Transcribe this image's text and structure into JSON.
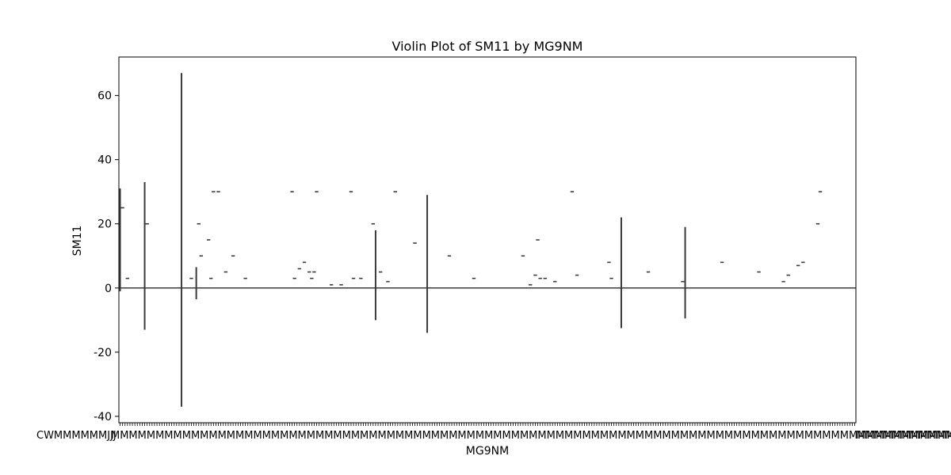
{
  "chart_data": {
    "type": "violin",
    "title": "Violin Plot of SM11 by MG9NM",
    "xlabel": "MG9NM",
    "ylabel": "SM11",
    "ylim": [
      -42,
      72
    ],
    "yticks": [
      -40,
      -20,
      0,
      20,
      40,
      60
    ],
    "category_count": 300,
    "x_tick_labels": "category labels overlap and are illegible",
    "grid": false,
    "legend": "none",
    "colors": {
      "line": "#3a3a3a",
      "axis": "#000000"
    },
    "violins": [
      {
        "pos": 0,
        "min": -1,
        "max": 31
      },
      {
        "pos": 10,
        "min": -13,
        "max": 33
      },
      {
        "pos": 25,
        "min": -37,
        "max": 67
      },
      {
        "pos": 31,
        "min": -3.5,
        "max": 6.5
      },
      {
        "pos": 104,
        "min": -10,
        "max": 18
      },
      {
        "pos": 125,
        "min": -14,
        "max": 29
      },
      {
        "pos": 204,
        "min": -12.5,
        "max": 22
      },
      {
        "pos": 230,
        "min": -9.5,
        "max": 19
      }
    ],
    "marks": [
      {
        "pos": 1,
        "value": 25
      },
      {
        "pos": 3,
        "value": 3
      },
      {
        "pos": 11,
        "value": 20
      },
      {
        "pos": 29,
        "value": 3
      },
      {
        "pos": 32,
        "value": 20
      },
      {
        "pos": 33,
        "value": 10
      },
      {
        "pos": 36,
        "value": 15
      },
      {
        "pos": 37,
        "value": 3
      },
      {
        "pos": 38,
        "value": 30
      },
      {
        "pos": 40,
        "value": 30
      },
      {
        "pos": 43,
        "value": 5
      },
      {
        "pos": 46,
        "value": 10
      },
      {
        "pos": 51,
        "value": 3
      },
      {
        "pos": 70,
        "value": 30
      },
      {
        "pos": 71,
        "value": 3
      },
      {
        "pos": 73,
        "value": 6
      },
      {
        "pos": 75,
        "value": 8
      },
      {
        "pos": 77,
        "value": 5
      },
      {
        "pos": 78,
        "value": 3
      },
      {
        "pos": 79,
        "value": 5
      },
      {
        "pos": 80,
        "value": 30
      },
      {
        "pos": 86,
        "value": 1
      },
      {
        "pos": 90,
        "value": 1
      },
      {
        "pos": 94,
        "value": 30
      },
      {
        "pos": 95,
        "value": 3
      },
      {
        "pos": 98,
        "value": 3
      },
      {
        "pos": 103,
        "value": 20
      },
      {
        "pos": 106,
        "value": 5
      },
      {
        "pos": 109,
        "value": 2
      },
      {
        "pos": 112,
        "value": 30
      },
      {
        "pos": 120,
        "value": 14
      },
      {
        "pos": 134,
        "value": 10
      },
      {
        "pos": 144,
        "value": 3
      },
      {
        "pos": 164,
        "value": 10
      },
      {
        "pos": 167,
        "value": 1
      },
      {
        "pos": 169,
        "value": 4
      },
      {
        "pos": 170,
        "value": 15
      },
      {
        "pos": 171,
        "value": 3
      },
      {
        "pos": 173,
        "value": 3
      },
      {
        "pos": 177,
        "value": 2
      },
      {
        "pos": 184,
        "value": 30
      },
      {
        "pos": 186,
        "value": 4
      },
      {
        "pos": 199,
        "value": 8
      },
      {
        "pos": 200,
        "value": 3
      },
      {
        "pos": 215,
        "value": 5
      },
      {
        "pos": 229,
        "value": 2
      },
      {
        "pos": 245,
        "value": 8
      },
      {
        "pos": 260,
        "value": 5
      },
      {
        "pos": 270,
        "value": 2
      },
      {
        "pos": 272,
        "value": 4
      },
      {
        "pos": 276,
        "value": 7
      },
      {
        "pos": 278,
        "value": 8
      },
      {
        "pos": 284,
        "value": 20
      },
      {
        "pos": 285,
        "value": 30
      }
    ]
  }
}
